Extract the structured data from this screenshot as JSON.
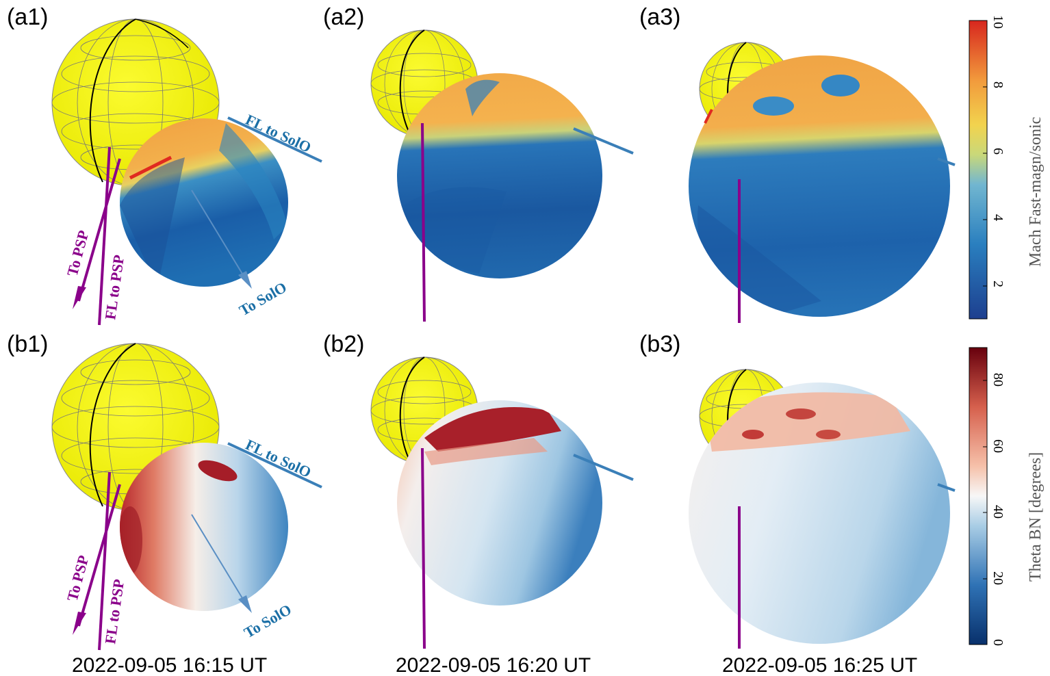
{
  "panels": {
    "a1": "(a1)",
    "a2": "(a2)",
    "a3": "(a3)",
    "b1": "(b1)",
    "b2": "(b2)",
    "b3": "(b3)"
  },
  "timestamps": [
    "2022-09-05 16:15 UT",
    "2022-09-05 16:20 UT",
    "2022-09-05 16:25 UT"
  ],
  "annotations": {
    "fl_to_solo": "FL to SolO",
    "to_psp": "To PSP",
    "fl_to_psp": "FL to PSP",
    "to_solo": "To SolO"
  },
  "colorbars": {
    "mach": {
      "title": "Mach Fast-magn/sonic",
      "ticks": [
        "2",
        "4",
        "6",
        "8",
        "10"
      ],
      "range": [
        1,
        10
      ]
    },
    "theta": {
      "title": "Theta BN [degrees]",
      "ticks": [
        "0",
        "20",
        "40",
        "60",
        "80"
      ],
      "range": [
        0,
        90
      ]
    }
  },
  "colors": {
    "sun": "#f2f200",
    "psp_line": "#8a008a",
    "solo_line": "#3a7fb8",
    "solo_text": "#1b6fa6"
  }
}
